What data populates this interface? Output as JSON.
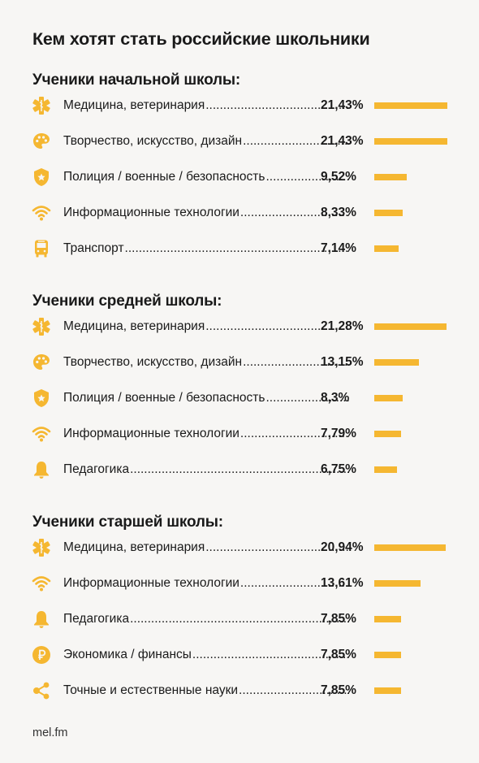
{
  "title": "Кем хотят стать российские школьники",
  "footer": "mel.fm",
  "colors": {
    "bar": "#f5b731",
    "icon": "#f5b731",
    "text": "#1a1a1a",
    "background": "#f7f6f4"
  },
  "chart_data": [
    {
      "type": "bar",
      "title": "Ученики начальной школы:",
      "categories": [
        "Медицина, ветеринария",
        "Творчество, искусство, дизайн",
        "Полиция / военные / безопасность",
        "Информационные технологии",
        "Транспорт"
      ],
      "icons": [
        "medical-icon",
        "palette-icon",
        "police-badge-icon",
        "wifi-icon",
        "bus-icon"
      ],
      "labels": [
        "21,43%",
        "21,43%",
        "9,52%",
        "8,33%",
        "7,14%"
      ],
      "values": [
        21.43,
        21.43,
        9.52,
        8.33,
        7.14
      ],
      "unit": "%"
    },
    {
      "type": "bar",
      "title": "Ученики средней школы:",
      "categories": [
        "Медицина, ветеринария",
        "Творчество, искусство, дизайн",
        "Полиция / военные / безопасность",
        "Информационные технологии",
        "Педагогика"
      ],
      "icons": [
        "medical-icon",
        "palette-icon",
        "police-badge-icon",
        "wifi-icon",
        "bell-icon"
      ],
      "labels": [
        "21,28%",
        "13,15%",
        "8,3%",
        "7,79%",
        "6,75%"
      ],
      "values": [
        21.28,
        13.15,
        8.3,
        7.79,
        6.75
      ],
      "unit": "%"
    },
    {
      "type": "bar",
      "title": "Ученики старшей школы:",
      "categories": [
        "Медицина, ветеринария",
        "Информационные технологии",
        "Педагогика",
        "Экономика / финансы",
        "Точные и естественные науки"
      ],
      "icons": [
        "medical-icon",
        "wifi-icon",
        "bell-icon",
        "ruble-coin-icon",
        "molecule-icon"
      ],
      "labels": [
        "20,94%",
        "13,61%",
        "7,85%",
        "7,85%",
        "7,85%"
      ],
      "values": [
        20.94,
        13.61,
        7.85,
        7.85,
        7.85
      ],
      "unit": "%"
    }
  ]
}
